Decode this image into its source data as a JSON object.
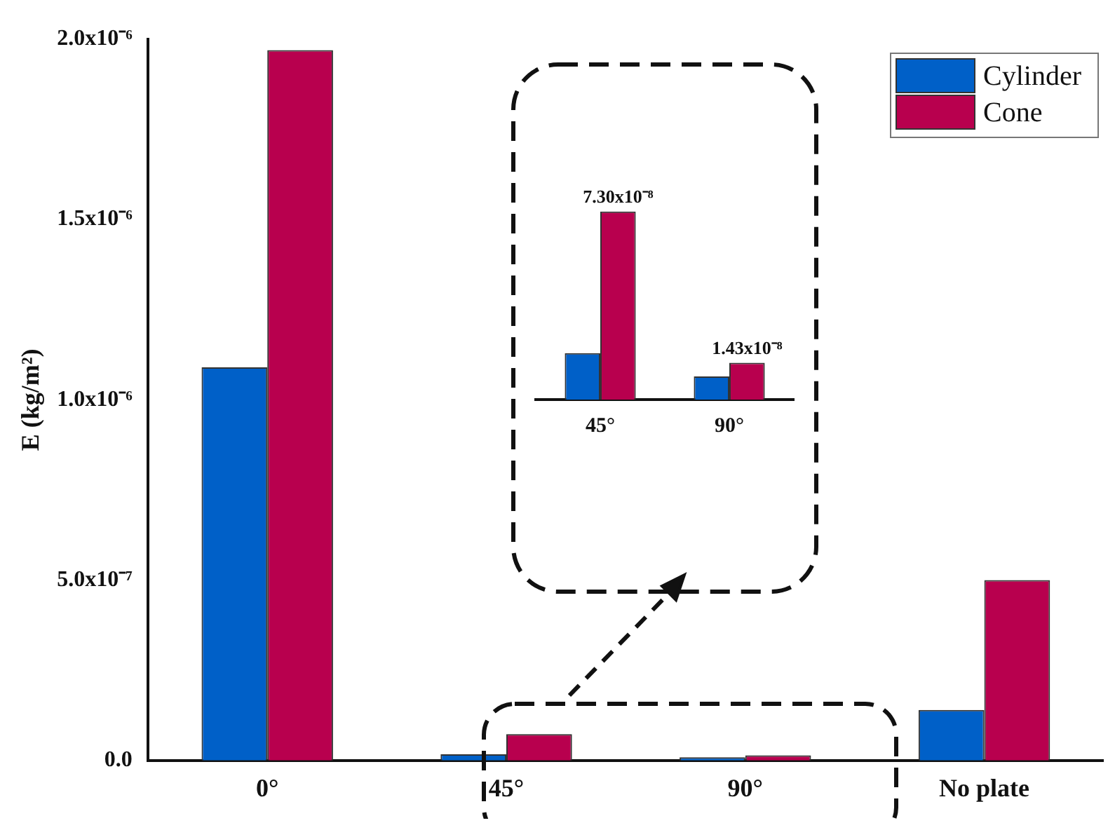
{
  "chart_data": [
    {
      "type": "bar",
      "ylabel": "E (kg/m²)",
      "categories": [
        "0°",
        "45°",
        "90°",
        "No plate"
      ],
      "series": [
        {
          "name": "Cylinder",
          "color": "#0060c8",
          "values": [
            1.09e-06,
            1.7e-08,
            9e-09,
            1.4e-07
          ]
        },
        {
          "name": "Cone",
          "color": "#b8004e",
          "values": [
            1.97e-06,
            7.3e-08,
            1.43e-08,
            5e-07
          ]
        }
      ],
      "ylim": [
        0,
        2e-06
      ],
      "yticks": [
        {
          "value": 0,
          "label": "0.0"
        },
        {
          "value": 5e-07,
          "label": "5.0x10⁻⁷"
        },
        {
          "value": 1e-06,
          "label": "1.0x10⁻⁶"
        },
        {
          "value": 1.5e-06,
          "label": "1.5x10⁻⁶"
        },
        {
          "value": 2e-06,
          "label": "2.0x10⁻⁶"
        }
      ],
      "grid": false,
      "legend": "top right"
    },
    {
      "type": "bar",
      "categories": [
        "45°",
        "90°"
      ],
      "series": [
        {
          "color": "#0060c8",
          "values": [
            1.8e-08,
            9e-09
          ]
        },
        {
          "color": "#b8004e",
          "values": [
            7.3e-08,
            1.43e-08
          ],
          "value_labels": [
            "7.30x10⁻⁸",
            "1.43x10⁻⁸"
          ]
        }
      ],
      "grid": false,
      "tick_labels": "x"
    }
  ]
}
